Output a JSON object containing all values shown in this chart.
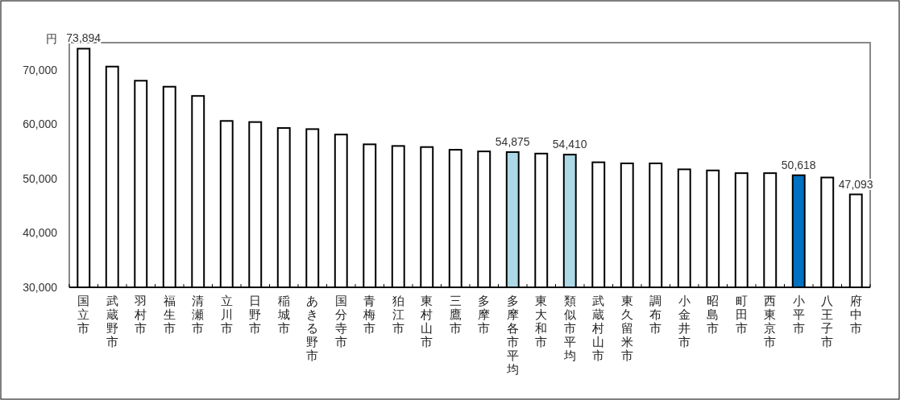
{
  "chart_data": {
    "type": "bar",
    "ylabel": "円",
    "categories": [
      "国立市",
      "武蔵野市",
      "羽村市",
      "福生市",
      "清瀬市",
      "立川市",
      "日野市",
      "稲城市",
      "あきる野市",
      "国分寺市",
      "青梅市",
      "狛江市",
      "東村山市",
      "三鷹市",
      "多摩市",
      "多摩各市平均",
      "東大和市",
      "類似市平均",
      "武蔵村山市",
      "東久留米市",
      "調布市",
      "小金井市",
      "昭島市",
      "町田市",
      "西東京市",
      "小平市",
      "八王子市",
      "府中市"
    ],
    "values": [
      73894,
      70600,
      68000,
      66900,
      65200,
      60600,
      60400,
      59300,
      59100,
      58100,
      56300,
      56000,
      55800,
      55300,
      55000,
      54875,
      54600,
      54410,
      53000,
      52800,
      52800,
      51700,
      51500,
      51000,
      51000,
      50618,
      50200,
      47093
    ],
    "colors": [
      "#ffffff",
      "#ffffff",
      "#ffffff",
      "#ffffff",
      "#ffffff",
      "#ffffff",
      "#ffffff",
      "#ffffff",
      "#ffffff",
      "#ffffff",
      "#ffffff",
      "#ffffff",
      "#ffffff",
      "#ffffff",
      "#ffffff",
      "#add8e6",
      "#ffffff",
      "#add8e6",
      "#ffffff",
      "#ffffff",
      "#ffffff",
      "#ffffff",
      "#ffffff",
      "#ffffff",
      "#ffffff",
      "#0070c0",
      "#ffffff",
      "#ffffff"
    ],
    "value_labels": [
      "73,894",
      null,
      null,
      null,
      null,
      null,
      null,
      null,
      null,
      null,
      null,
      null,
      null,
      null,
      null,
      "54,875",
      null,
      "54,410",
      null,
      null,
      null,
      null,
      null,
      null,
      null,
      "50,618",
      null,
      "47,093"
    ],
    "ylim": [
      30000,
      75000
    ],
    "yticks": [
      {
        "value": 30000,
        "label": "30,000"
      },
      {
        "value": 40000,
        "label": "40,000"
      },
      {
        "value": 50000,
        "label": "50,000"
      },
      {
        "value": 60000,
        "label": "60,000"
      },
      {
        "value": 70000,
        "label": "70,000"
      }
    ],
    "grid": false
  }
}
